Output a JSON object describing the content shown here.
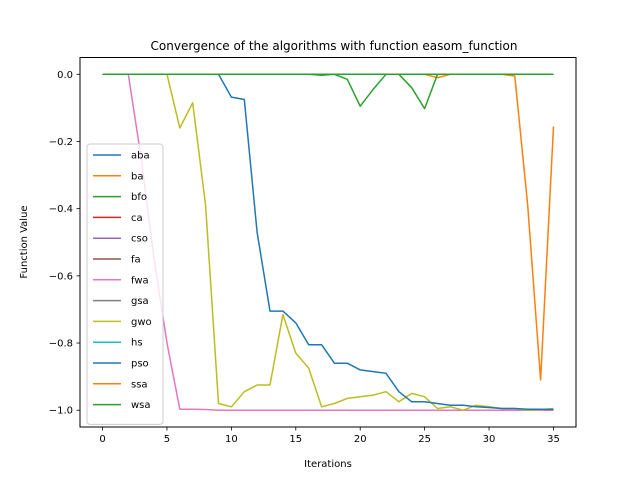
{
  "chart_data": {
    "type": "line",
    "title": "Convergence of the algorithms with function easom_function",
    "xlabel": "Iterations",
    "ylabel": "Function Value",
    "xlim": [
      -1.75,
      36.75
    ],
    "ylim": [
      -1.05,
      0.05
    ],
    "xticks": [
      0,
      5,
      10,
      15,
      20,
      25,
      30,
      35
    ],
    "yticks": [
      0.0,
      -0.2,
      -0.4,
      -0.6,
      -0.8,
      -1.0
    ],
    "grid": false,
    "legend_position": "center-left",
    "x": [
      0,
      1,
      2,
      3,
      4,
      5,
      6,
      7,
      8,
      9,
      10,
      11,
      12,
      13,
      14,
      15,
      16,
      17,
      18,
      19,
      20,
      21,
      22,
      23,
      24,
      25,
      26,
      27,
      28,
      29,
      30,
      31,
      32,
      33,
      34,
      35
    ],
    "series": [
      {
        "name": "aba",
        "color": "#1f77b4",
        "values": [
          0,
          0,
          0,
          0,
          0,
          0,
          0,
          0,
          0,
          0,
          0,
          0,
          0,
          0,
          0,
          0,
          0,
          0,
          0,
          0,
          0,
          0,
          0,
          0,
          0,
          0,
          0,
          0,
          0,
          0,
          0,
          0,
          0,
          0,
          0,
          0
        ]
      },
      {
        "name": "ba",
        "color": "#ff7f0e",
        "values": [
          0,
          0,
          0,
          0,
          0,
          0,
          0,
          0,
          0,
          0,
          0,
          0,
          0,
          0,
          0,
          0,
          0,
          0,
          0,
          0,
          0,
          0,
          0,
          0,
          0,
          0,
          -0.01,
          0,
          0,
          0,
          0,
          0,
          0,
          0,
          0,
          0
        ]
      },
      {
        "name": "bfo",
        "color": "#2ca02c",
        "values": [
          0,
          0,
          0,
          0,
          0,
          0,
          0,
          0,
          0,
          0,
          0,
          0,
          0,
          0,
          0,
          0,
          0,
          -0.003,
          0,
          -0.015,
          -0.095,
          -0.045,
          0,
          0,
          -0.04,
          -0.102,
          0,
          0,
          0,
          0,
          0,
          0,
          0,
          0,
          0,
          0
        ]
      },
      {
        "name": "ca",
        "color": "#d62728",
        "values": [
          0,
          0,
          0,
          0,
          0,
          0,
          0,
          0,
          0,
          0,
          0,
          0,
          0,
          0,
          0,
          0,
          0,
          0,
          0,
          0,
          0,
          0,
          0,
          0,
          0,
          0,
          0,
          0,
          0,
          0,
          0,
          0,
          0,
          0,
          0,
          0
        ]
      },
      {
        "name": "cso",
        "color": "#9467bd",
        "values": [
          0,
          0,
          0,
          0,
          0,
          0,
          0,
          0,
          0,
          0,
          0,
          0,
          0,
          0,
          0,
          0,
          0,
          0,
          0,
          0,
          0,
          0,
          0,
          0,
          0,
          0,
          0,
          0,
          0,
          0,
          0,
          0,
          0,
          0,
          0,
          0
        ]
      },
      {
        "name": "fa",
        "color": "#8c564b",
        "values": [
          0,
          0,
          0,
          0,
          0,
          0,
          0,
          0,
          0,
          0,
          0,
          0,
          0,
          0,
          0,
          0,
          0,
          0,
          0,
          0,
          0,
          0,
          0,
          0,
          0,
          0,
          0,
          0,
          0,
          0,
          0,
          0,
          0,
          0,
          0,
          0
        ]
      },
      {
        "name": "fwa",
        "color": "#e377c2",
        "values": [
          0,
          0,
          0,
          -0.25,
          -0.55,
          -0.8,
          -0.997,
          -0.997,
          -0.998,
          -1.0,
          -1.0,
          -1.0,
          -1.0,
          -1.0,
          -1.0,
          -1.0,
          -1.0,
          -1.0,
          -1.0,
          -1.0,
          -1.0,
          -1.0,
          -1.0,
          -1.0,
          -1.0,
          -1.0,
          -1.0,
          -1.0,
          -1.0,
          -1.0,
          -1.0,
          -1.0,
          -1.0,
          -1.0,
          -1.0,
          -1.0
        ]
      },
      {
        "name": "gsa",
        "color": "#7f7f7f",
        "values": [
          0,
          0,
          0,
          0,
          0,
          0,
          0,
          0,
          0,
          0,
          0,
          0,
          0,
          0,
          0,
          0,
          0,
          0,
          0,
          0,
          0,
          0,
          0,
          0,
          0,
          0,
          0,
          0,
          0,
          0,
          0,
          0,
          0,
          0,
          0,
          0
        ]
      },
      {
        "name": "gwo",
        "color": "#bcbd22",
        "values": [
          0,
          0,
          0,
          0,
          0,
          0,
          -0.16,
          -0.085,
          -0.39,
          -0.98,
          -0.99,
          -0.945,
          -0.925,
          -0.925,
          -0.715,
          -0.83,
          -0.875,
          -0.99,
          -0.98,
          -0.965,
          -0.96,
          -0.955,
          -0.945,
          -0.975,
          -0.95,
          -0.96,
          -0.995,
          -0.99,
          -1.0,
          -0.985,
          -0.99,
          -0.995,
          -0.995,
          -1.0,
          -0.998,
          -0.995
        ]
      },
      {
        "name": "hs",
        "color": "#17becf",
        "values": [
          0,
          0,
          0,
          0,
          0,
          0,
          0,
          0,
          0,
          0,
          0,
          0,
          0,
          0,
          0,
          0,
          0,
          0,
          0,
          0,
          0,
          0,
          0,
          0,
          0,
          0,
          0,
          0,
          0,
          0,
          0,
          0,
          0,
          0,
          0,
          0
        ]
      },
      {
        "name": "pso",
        "color": "#1f77b4",
        "values": [
          0,
          0,
          0,
          0,
          0,
          0,
          0,
          0,
          0,
          0,
          -0.068,
          -0.075,
          -0.47,
          -0.705,
          -0.705,
          -0.74,
          -0.805,
          -0.805,
          -0.86,
          -0.86,
          -0.88,
          -0.885,
          -0.89,
          -0.945,
          -0.975,
          -0.975,
          -0.98,
          -0.985,
          -0.985,
          -0.99,
          -0.992,
          -0.995,
          -0.995,
          -0.997,
          -0.997,
          -0.998
        ]
      },
      {
        "name": "ssa",
        "color": "#ff7f0e",
        "values": [
          0,
          0,
          0,
          0,
          0,
          0,
          0,
          0,
          0,
          0,
          0,
          0,
          0,
          0,
          0,
          0,
          0,
          0,
          0,
          0,
          0,
          0,
          0,
          0,
          0,
          0,
          0,
          0,
          0,
          0,
          0,
          0,
          -0.005,
          -0.39,
          -0.91,
          -0.155
        ]
      },
      {
        "name": "wsa",
        "color": "#2ca02c",
        "values": [
          0,
          0,
          0,
          0,
          0,
          0,
          0,
          0,
          0,
          0,
          0,
          0,
          0,
          0,
          0,
          0,
          0,
          0,
          0,
          0,
          0,
          0,
          0,
          0,
          0,
          0,
          0,
          0,
          0,
          0,
          0,
          0,
          0,
          0,
          0,
          0
        ]
      }
    ]
  }
}
